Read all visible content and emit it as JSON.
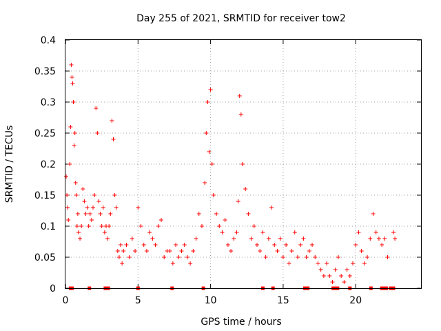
{
  "chart_data": {
    "type": "scatter",
    "title": "Day 255 of 2021, SRMTID for receiver tow2",
    "xlabel": "GPS time / hours",
    "ylabel": "SRMTID / TECUs",
    "xlim": [
      0,
      24.5
    ],
    "ylim": [
      0,
      0.4
    ],
    "xticks": [
      0,
      5,
      10,
      15,
      20
    ],
    "xtick_labels": [
      "0",
      "5",
      "10",
      "15",
      "20"
    ],
    "yticks": [
      0,
      0.05,
      0.1,
      0.15,
      0.2,
      0.25,
      0.3,
      0.35,
      0.4
    ],
    "ytick_labels": [
      "0",
      "0.05",
      "0.1",
      "0.15",
      "0.2",
      "0.25",
      "0.3",
      "0.35",
      "0.4"
    ],
    "grid": true,
    "marker": "plus",
    "color": "#ff0000",
    "series": [
      {
        "name": "SRMTID",
        "x": [
          0.05,
          0.1,
          0.15,
          0.2,
          0.3,
          0.35,
          0.4,
          0.45,
          0.5,
          0.55,
          0.6,
          0.65,
          0.7,
          0.75,
          0.8,
          0.85,
          0.9,
          1.0,
          1.1,
          1.2,
          1.3,
          1.4,
          1.5,
          1.6,
          1.7,
          1.8,
          1.9,
          2.0,
          2.1,
          2.2,
          2.3,
          2.4,
          2.5,
          2.6,
          2.7,
          2.8,
          2.9,
          3.0,
          3.1,
          3.2,
          3.3,
          3.4,
          3.5,
          3.6,
          3.7,
          3.8,
          3.9,
          4.0,
          4.2,
          4.4,
          4.6,
          4.8,
          5.0,
          5.2,
          5.4,
          5.6,
          5.8,
          6.0,
          6.2,
          6.4,
          6.6,
          6.8,
          7.0,
          7.2,
          7.4,
          7.6,
          7.8,
          8.0,
          8.2,
          8.4,
          8.6,
          8.8,
          9.0,
          9.2,
          9.4,
          9.6,
          9.7,
          9.8,
          9.9,
          10.0,
          10.1,
          10.2,
          10.4,
          10.6,
          10.8,
          11.0,
          11.2,
          11.4,
          11.6,
          11.8,
          11.9,
          12.0,
          12.1,
          12.2,
          12.4,
          12.6,
          12.8,
          13.0,
          13.2,
          13.4,
          13.6,
          13.8,
          14.0,
          14.2,
          14.4,
          14.6,
          14.8,
          15.0,
          15.2,
          15.4,
          15.6,
          15.8,
          16.0,
          16.2,
          16.4,
          16.6,
          16.8,
          17.0,
          17.2,
          17.4,
          17.6,
          17.8,
          18.0,
          18.2,
          18.4,
          18.6,
          18.8,
          19.0,
          19.2,
          19.4,
          19.6,
          19.8,
          20.0,
          20.2,
          20.4,
          20.6,
          20.8,
          21.0,
          21.2,
          21.4,
          21.6,
          21.8,
          22.0,
          22.2,
          22.6,
          22.7
        ],
        "y": [
          0.18,
          0.15,
          0.13,
          0.11,
          0.2,
          0.26,
          0.36,
          0.34,
          0.33,
          0.3,
          0.23,
          0.25,
          0.17,
          0.15,
          0.1,
          0.12,
          0.09,
          0.08,
          0.1,
          0.16,
          0.14,
          0.12,
          0.13,
          0.1,
          0.12,
          0.11,
          0.13,
          0.15,
          0.29,
          0.25,
          0.14,
          0.12,
          0.1,
          0.13,
          0.09,
          0.1,
          0.08,
          0.1,
          0.12,
          0.27,
          0.24,
          0.15,
          0.13,
          0.06,
          0.05,
          0.07,
          0.04,
          0.06,
          0.07,
          0.05,
          0.08,
          0.06,
          0.13,
          0.1,
          0.07,
          0.06,
          0.09,
          0.08,
          0.07,
          0.1,
          0.11,
          0.05,
          0.06,
          0.06,
          0.04,
          0.07,
          0.05,
          0.06,
          0.07,
          0.05,
          0.04,
          0.06,
          0.08,
          0.12,
          0.1,
          0.17,
          0.25,
          0.3,
          0.22,
          0.32,
          0.2,
          0.15,
          0.12,
          0.1,
          0.09,
          0.11,
          0.07,
          0.06,
          0.08,
          0.09,
          0.14,
          0.31,
          0.28,
          0.2,
          0.16,
          0.12,
          0.08,
          0.1,
          0.07,
          0.06,
          0.09,
          0.05,
          0.08,
          0.13,
          0.07,
          0.06,
          0.08,
          0.05,
          0.07,
          0.04,
          0.06,
          0.09,
          0.05,
          0.07,
          0.08,
          0.05,
          0.06,
          0.07,
          0.05,
          0.04,
          0.03,
          0.02,
          0.04,
          0.02,
          0.01,
          0.03,
          0.05,
          0.02,
          0.01,
          0.03,
          0.02,
          0.04,
          0.07,
          0.09,
          0.06,
          0.04,
          0.05,
          0.08,
          0.12,
          0.09,
          0.08,
          0.07,
          0.08,
          0.05,
          0.09,
          0.08
        ]
      }
    ],
    "baseline_x": [
      0.35,
      0.45,
      1.65,
      2.75,
      2.85,
      2.95,
      5.0,
      7.35,
      9.5,
      13.6,
      14.3,
      16.5,
      16.6,
      16.7,
      18.45,
      18.6,
      18.75,
      19.6,
      21.05,
      21.8,
      21.95,
      22.1,
      22.4,
      22.6
    ]
  }
}
